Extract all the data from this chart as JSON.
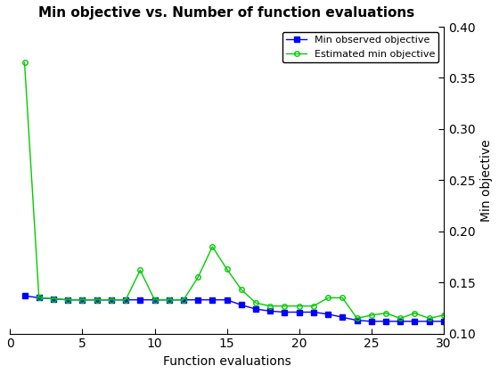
{
  "title": "Min objective vs. Number of function evaluations",
  "xlabel": "Function evaluations",
  "ylabel": "Min objective",
  "xlim": [
    0,
    30
  ],
  "ylim": [
    0.1,
    0.4
  ],
  "yticks": [
    0.1,
    0.15,
    0.2,
    0.25,
    0.3,
    0.35,
    0.4
  ],
  "xticks": [
    0,
    5,
    10,
    15,
    20,
    25,
    30
  ],
  "blue_x": [
    1,
    2,
    3,
    4,
    5,
    6,
    7,
    8,
    9,
    10,
    11,
    12,
    13,
    14,
    15,
    16,
    17,
    18,
    19,
    20,
    21,
    22,
    23,
    24,
    25,
    26,
    27,
    28,
    29,
    30
  ],
  "blue_y": [
    0.137,
    0.135,
    0.134,
    0.133,
    0.133,
    0.133,
    0.133,
    0.133,
    0.133,
    0.133,
    0.133,
    0.133,
    0.133,
    0.133,
    0.133,
    0.128,
    0.124,
    0.122,
    0.121,
    0.121,
    0.121,
    0.119,
    0.116,
    0.113,
    0.112,
    0.112,
    0.112,
    0.112,
    0.112,
    0.112
  ],
  "green_x": [
    1,
    2,
    3,
    4,
    5,
    6,
    7,
    8,
    9,
    10,
    11,
    12,
    13,
    14,
    15,
    16,
    17,
    18,
    19,
    20,
    21,
    22,
    23,
    24,
    25,
    26,
    27,
    28,
    29,
    30
  ],
  "green_y": [
    0.365,
    0.135,
    0.134,
    0.133,
    0.133,
    0.133,
    0.133,
    0.133,
    0.162,
    0.133,
    0.133,
    0.133,
    0.155,
    0.185,
    0.163,
    0.143,
    0.13,
    0.127,
    0.127,
    0.127,
    0.127,
    0.135,
    0.135,
    0.115,
    0.118,
    0.12,
    0.115,
    0.12,
    0.115,
    0.118
  ],
  "blue_color": "#0000ff",
  "green_color": "#00cc00",
  "blue_label": "Min observed objective",
  "green_label": "Estimated min objective",
  "blue_marker": "s",
  "green_marker": "o",
  "markersize": 4,
  "linewidth": 1.0,
  "background_color": "#ffffff",
  "legend_loc": "upper right",
  "title_fontsize": 11,
  "axis_fontsize": 10,
  "tick_fontsize": 10
}
